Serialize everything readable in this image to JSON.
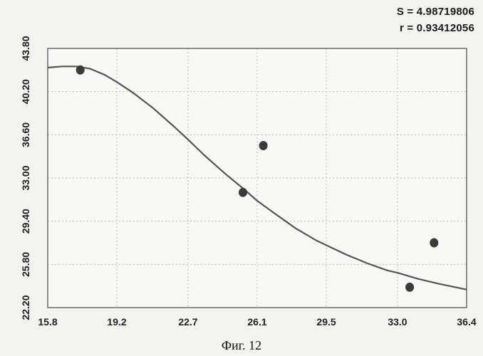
{
  "stats": {
    "s_text": "S = 4.98719806",
    "r_text": "r = 0.93412056"
  },
  "caption": "Фиг. 12",
  "chart_data": {
    "type": "scatter",
    "title": "",
    "xlabel": "",
    "ylabel": "",
    "xlim": [
      15.8,
      36.4
    ],
    "ylim": [
      22.2,
      43.8
    ],
    "x_ticks": [
      "15.8",
      "19.2",
      "22.7",
      "26.1",
      "29.5",
      "33.0",
      "36.4"
    ],
    "y_ticks": [
      "22.20",
      "25.80",
      "29.40",
      "33.00",
      "36.60",
      "40.20",
      "43.80"
    ],
    "grid": true,
    "points": [
      {
        "x": 17.4,
        "y": 42.0
      },
      {
        "x": 25.4,
        "y": 31.8
      },
      {
        "x": 26.4,
        "y": 35.7
      },
      {
        "x": 33.6,
        "y": 23.9
      },
      {
        "x": 34.8,
        "y": 27.6
      }
    ],
    "fit_curve": {
      "x": [
        15.8,
        16.5,
        17.2,
        17.9,
        18.6,
        19.2,
        20.0,
        21.0,
        22.0,
        22.7,
        23.5,
        24.5,
        25.5,
        26.1,
        27.0,
        28.0,
        29.0,
        29.5,
        30.5,
        31.5,
        32.5,
        33.0,
        34.0,
        35.0,
        36.4
      ],
      "y": [
        42.2,
        42.3,
        42.3,
        42.1,
        41.6,
        41.0,
        40.1,
        38.8,
        37.3,
        36.2,
        34.9,
        33.4,
        32.0,
        31.1,
        30.0,
        28.8,
        27.8,
        27.4,
        26.6,
        25.9,
        25.3,
        25.1,
        24.6,
        24.2,
        23.7
      ]
    },
    "colors": {
      "curve": "#555555",
      "points": "#3a3a3a",
      "grid": "#bdbdbd"
    }
  }
}
